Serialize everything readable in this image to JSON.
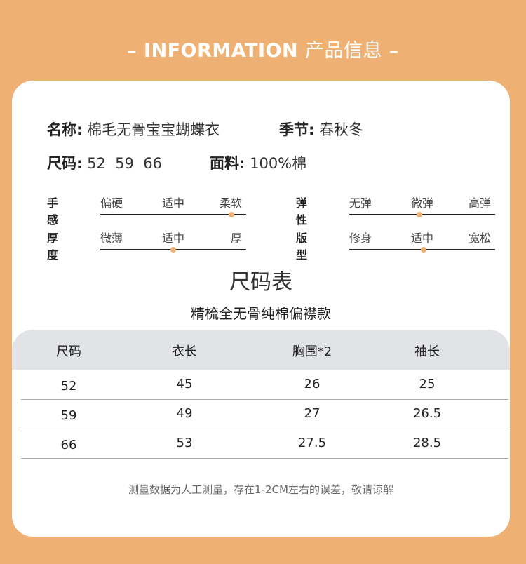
{
  "header": {
    "title_en": "INFORMATION",
    "title_cn": "产品信息",
    "dash": "–"
  },
  "info": {
    "name_label": "名称:",
    "name_value": "棉毛无骨宝宝蝴蝶衣",
    "season_label": "季节:",
    "season_value": "春秋冬",
    "size_label": "尺码:",
    "size_value": "52  59  66",
    "fabric_label": "面料:",
    "fabric_value": "100%棉"
  },
  "sliders": [
    {
      "label": "手感",
      "options": [
        "偏硬",
        "适中",
        "柔软"
      ],
      "level": 0.9
    },
    {
      "label": "弹性",
      "options": [
        "无弹",
        "微弹",
        "高弹"
      ],
      "level": 0.48
    },
    {
      "label": "厚度",
      "options": [
        "微薄",
        "适中",
        "厚"
      ],
      "level": 0.5
    },
    {
      "label": "版型",
      "options": [
        "修身",
        "适中",
        "宽松"
      ],
      "level": 0.51
    }
  ],
  "accent": "#EFB074",
  "size_chart": {
    "title": "尺码表",
    "subtitle": "精梳全无骨纯棉偏襟款",
    "headers": [
      "尺码",
      "衣长",
      "胸围*2",
      "袖长"
    ],
    "rows": [
      [
        "52",
        "45",
        "26",
        "25"
      ],
      [
        "59",
        "49",
        "27",
        "26.5"
      ],
      [
        "66",
        "53",
        "27.5",
        "28.5"
      ]
    ],
    "note": "测量数据为人工测量，存在1-2CM左右的误差，敬请谅解"
  }
}
